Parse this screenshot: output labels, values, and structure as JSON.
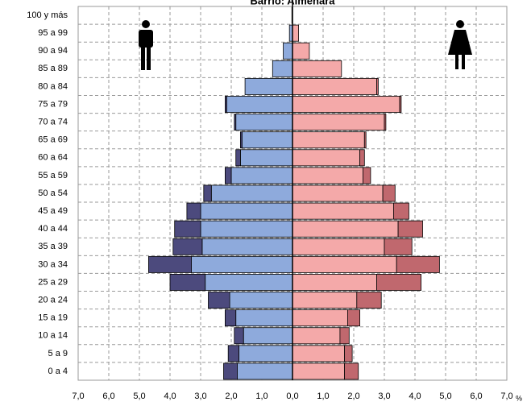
{
  "chart_data": {
    "type": "population_pyramid",
    "title": "Barrio: Almenara",
    "x_unit": "%",
    "categories": [
      "0 a 4",
      "5 a 9",
      "10 a 14",
      "15 a 19",
      "20 a 24",
      "25 a 29",
      "30 a 34",
      "35 a 39",
      "40 a 44",
      "45 a 49",
      "50 a 54",
      "55 a 59",
      "60 a 64",
      "65 a 69",
      "70 a 74",
      "75 a 79",
      "80 a 84",
      "85 a 89",
      "90 a 94",
      "95 a 99",
      "100 y más"
    ],
    "series": [
      {
        "side": "left",
        "color": "#8eaadc",
        "values": [
          1.8,
          1.75,
          1.6,
          1.85,
          2.05,
          2.85,
          3.3,
          2.95,
          3.0,
          3.0,
          2.65,
          2.0,
          1.7,
          1.65,
          1.85,
          2.15,
          1.55,
          0.65,
          0.3,
          0.1,
          0.02
        ]
      },
      {
        "side": "left",
        "color": "#4c4a7d",
        "values": [
          0.45,
          0.35,
          0.3,
          0.35,
          0.7,
          1.15,
          1.4,
          0.95,
          0.85,
          0.45,
          0.25,
          0.2,
          0.15,
          0.05,
          0.05,
          0.05,
          0,
          0,
          0,
          0,
          0
        ]
      },
      {
        "side": "right",
        "color": "#f4a9a9",
        "values": [
          1.7,
          1.7,
          1.55,
          1.8,
          2.1,
          2.75,
          3.4,
          3.0,
          3.45,
          3.3,
          2.95,
          2.3,
          2.2,
          2.35,
          3.0,
          3.5,
          2.75,
          1.6,
          0.55,
          0.2,
          0
        ]
      },
      {
        "side": "right",
        "color": "#c0686e",
        "values": [
          0.45,
          0.25,
          0.3,
          0.4,
          0.8,
          1.45,
          1.4,
          0.9,
          0.8,
          0.5,
          0.4,
          0.25,
          0.15,
          0.05,
          0.05,
          0.05,
          0.05,
          0,
          0,
          0,
          0
        ]
      }
    ],
    "xlim": [
      -7,
      7
    ],
    "xticks": [
      {
        "value": -7,
        "label": "7,0"
      },
      {
        "value": -6,
        "label": "6,0"
      },
      {
        "value": -5,
        "label": "5,0"
      },
      {
        "value": -4,
        "label": "4,0"
      },
      {
        "value": -3,
        "label": "3,0"
      },
      {
        "value": -2,
        "label": "2,0"
      },
      {
        "value": -1,
        "label": "1,0"
      },
      {
        "value": 0,
        "label": "0,0"
      },
      {
        "value": 1,
        "label": "1,0"
      },
      {
        "value": 2,
        "label": "2,0"
      },
      {
        "value": 3,
        "label": "3,0"
      },
      {
        "value": 4,
        "label": "4,0"
      },
      {
        "value": 5,
        "label": "5,0"
      },
      {
        "value": 6,
        "label": "6,0"
      },
      {
        "value": 7,
        "label": "7,0"
      }
    ],
    "grid": true
  }
}
